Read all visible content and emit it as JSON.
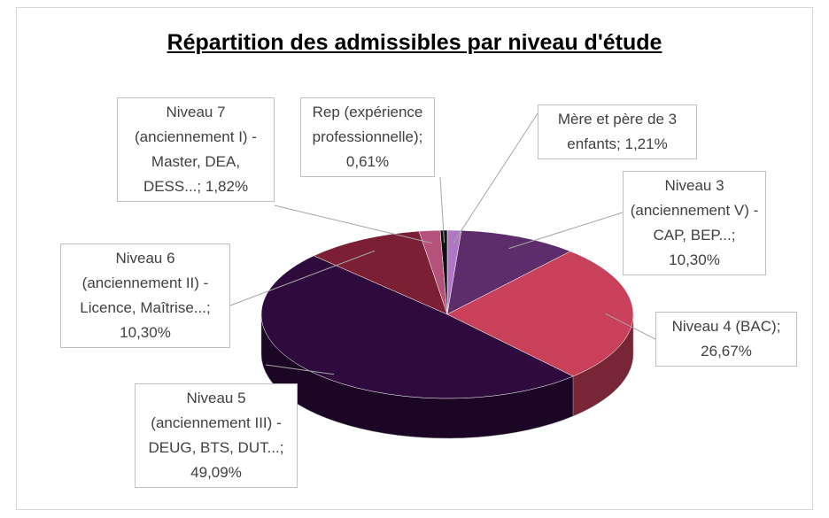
{
  "chart_data": {
    "type": "pie3d",
    "title": "Répartition des admissibles par niveau d'étude",
    "categories": [
      "Mère et père de 3 enfants",
      "Niveau 3 (anciennement V) - CAP, BEP...",
      "Niveau 4 (BAC)",
      "Niveau 5 (anciennement III) - DEUG, BTS, DUT...",
      "Niveau 6 (anciennement II) - Licence, Maîtrise...",
      "Niveau 7 (anciennement I) - Master, DEA, DESS...",
      "Rep (expérience professionnelle)"
    ],
    "values": [
      1.21,
      10.3,
      26.67,
      49.09,
      10.3,
      1.82,
      0.61
    ],
    "value_labels": [
      "1,21%",
      "10,30%",
      "26,67%",
      "49,09%",
      "10,30%",
      "1,82%",
      "0,61%"
    ],
    "colors": [
      "#b077c4",
      "#5c2d6a",
      "#c8405a",
      "#2e0a3d",
      "#7b1f35",
      "#b5527a",
      "#111111"
    ]
  }
}
